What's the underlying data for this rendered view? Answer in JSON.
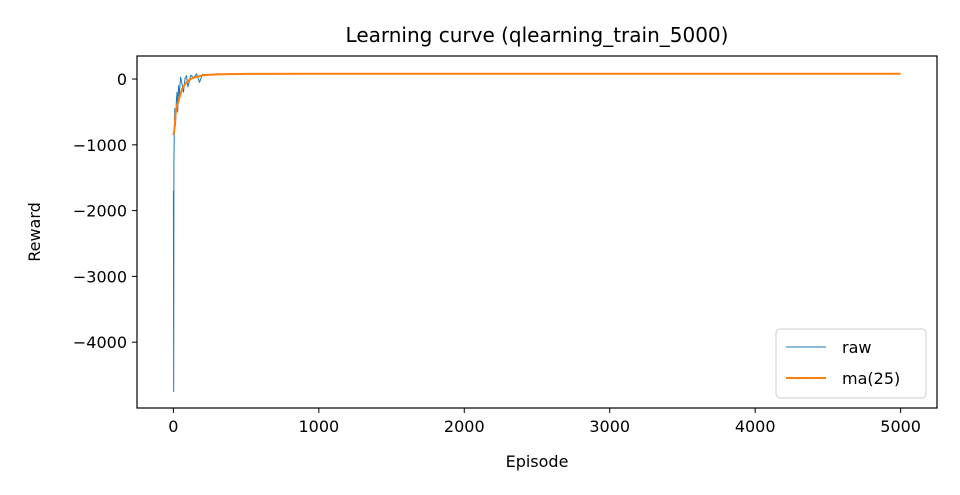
{
  "chart_data": {
    "type": "line",
    "title": "Learning curve (qlearning_train_5000)",
    "xlabel": "Episode",
    "ylabel": "Reward",
    "xlim": [
      -250,
      5250
    ],
    "ylim": [
      -5000,
      350
    ],
    "xticks": [
      0,
      1000,
      2000,
      3000,
      4000,
      5000
    ],
    "yticks": [
      0,
      -1000,
      -2000,
      -3000,
      -4000
    ],
    "xtick_labels": [
      "0",
      "1000",
      "2000",
      "3000",
      "4000",
      "5000"
    ],
    "ytick_labels": [
      "0",
      "−1000",
      "−2000",
      "−3000",
      "−4000"
    ],
    "grid": false,
    "legend_position": "lower-right",
    "series": [
      {
        "name": "raw",
        "color": "#1f77b4",
        "x": [
          0,
          2,
          4,
          6,
          8,
          10,
          15,
          20,
          25,
          30,
          35,
          40,
          50,
          60,
          70,
          80,
          90,
          100,
          120,
          140,
          160,
          180,
          200,
          250,
          300,
          350,
          400,
          500,
          700,
          1000,
          1500,
          2000,
          2500,
          3000,
          3500,
          4000,
          4500,
          5000
        ],
        "values": [
          -1700,
          -4750,
          -1300,
          -900,
          -600,
          -450,
          -700,
          -350,
          -200,
          -500,
          -100,
          -250,
          30,
          -80,
          -200,
          10,
          50,
          -120,
          60,
          20,
          80,
          -50,
          70,
          60,
          80,
          75,
          80,
          78,
          80,
          82,
          80,
          80,
          81,
          80,
          82,
          80,
          81,
          80
        ]
      },
      {
        "name": "ma(25)",
        "color": "#ff7f0e",
        "x": [
          0,
          5,
          10,
          15,
          20,
          25,
          30,
          40,
          50,
          60,
          80,
          100,
          120,
          150,
          200,
          250,
          300,
          400,
          500,
          1000,
          2000,
          3000,
          4000,
          5000
        ],
        "values": [
          -850,
          -800,
          -700,
          -550,
          -450,
          -400,
          -380,
          -300,
          -220,
          -150,
          -80,
          -30,
          0,
          30,
          55,
          65,
          70,
          75,
          78,
          80,
          80,
          80,
          80,
          80
        ]
      }
    ]
  }
}
